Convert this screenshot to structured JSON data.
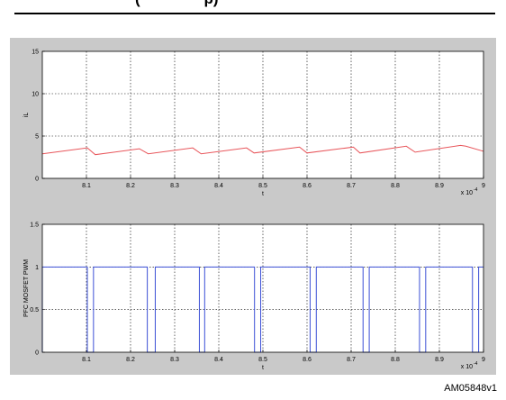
{
  "page": {
    "header_fragment": "(               p)",
    "figure_id": "AM05848v1"
  },
  "chart_data": [
    {
      "type": "line",
      "ylabel": "iL",
      "xlabel": "t",
      "x_exponent_label": "x 10",
      "x_exponent_power": "-4",
      "xlim": [
        8.0,
        9.0
      ],
      "ylim": [
        0,
        15
      ],
      "xticks": [
        "8.1",
        "8.2",
        "8.3",
        "8.4",
        "8.5",
        "8.6",
        "8.7",
        "8.8",
        "8.9",
        "9"
      ],
      "yticks": [
        "0",
        "5",
        "10",
        "15"
      ],
      "grid": true,
      "line_color": "#e8555a",
      "series": [
        {
          "x": [
            8.0,
            8.102,
            8.12,
            8.22,
            8.24,
            8.341,
            8.36,
            8.463,
            8.48,
            8.583,
            8.6,
            8.705,
            8.72,
            8.825,
            8.845,
            8.948,
            8.96,
            9.0
          ],
          "y": [
            2.9,
            3.6,
            2.8,
            3.5,
            2.9,
            3.6,
            2.9,
            3.6,
            3.0,
            3.7,
            3.0,
            3.7,
            3.0,
            3.8,
            3.1,
            3.9,
            3.8,
            3.2
          ]
        }
      ]
    },
    {
      "type": "line",
      "ylabel": "PFC MOSFET PWM",
      "xlabel": "t",
      "x_exponent_label": "x 10",
      "x_exponent_power": "-4",
      "xlim": [
        8.0,
        9.0
      ],
      "ylim": [
        0,
        1.5
      ],
      "xticks": [
        "8.1",
        "8.2",
        "8.3",
        "8.4",
        "8.5",
        "8.6",
        "8.7",
        "8.8",
        "8.9",
        "9"
      ],
      "yticks": [
        "0",
        "0.5",
        "1",
        "1.5"
      ],
      "grid": true,
      "line_color": "#3b4fd6",
      "series": [
        {
          "x": [
            8.0,
            8.0,
            8.102,
            8.102,
            8.116,
            8.116,
            8.238,
            8.238,
            8.256,
            8.256,
            8.356,
            8.356,
            8.368,
            8.368,
            8.481,
            8.481,
            8.495,
            8.495,
            8.607,
            8.607,
            8.621,
            8.621,
            8.727,
            8.727,
            8.741,
            8.741,
            8.855,
            8.855,
            8.869,
            8.869,
            8.975,
            8.975,
            8.989,
            8.989,
            9.0
          ],
          "y": [
            0,
            1,
            1,
            0,
            0,
            1,
            1,
            0,
            0,
            1,
            1,
            0,
            0,
            1,
            1,
            0,
            0,
            1,
            1,
            0,
            0,
            1,
            1,
            0,
            0,
            1,
            1,
            0,
            0,
            1,
            1,
            0,
            0,
            1,
            1
          ]
        }
      ]
    }
  ]
}
